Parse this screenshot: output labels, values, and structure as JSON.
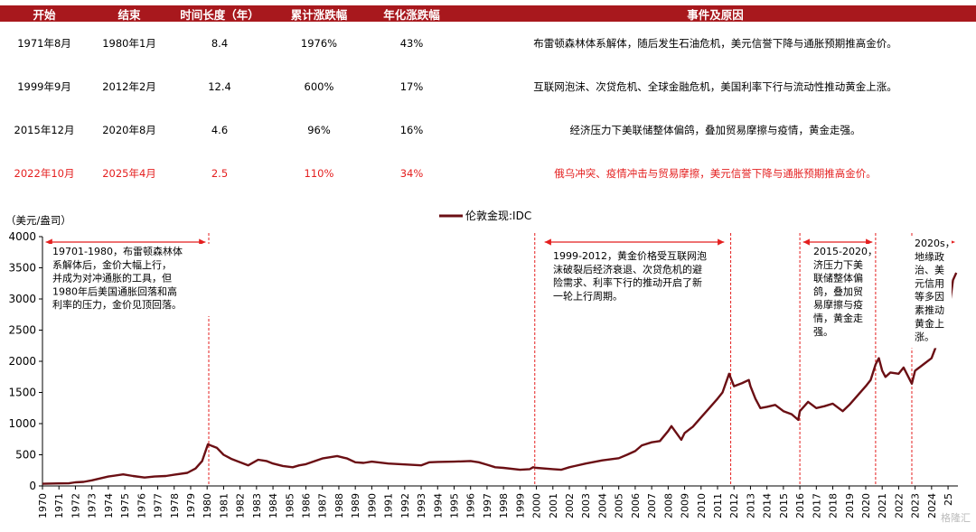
{
  "table": {
    "headers": [
      "开始",
      "结束",
      "时间长度（年）",
      "累计涨跌幅",
      "年化涨跌幅",
      "事件及原因"
    ],
    "rows": [
      {
        "start": "1971年8月",
        "end": "1980年1月",
        "years": "8.4",
        "cum": "1976%",
        "ann": "43%",
        "reason": "布雷顿森林体系解体，随后发生石油危机，美元信誉下降与通胀预期推高金价。",
        "highlight": false
      },
      {
        "start": "1999年9月",
        "end": "2012年2月",
        "years": "12.4",
        "cum": "600%",
        "ann": "17%",
        "reason": "互联网泡沫、次贷危机、全球金融危机，美国利率下行与流动性推动黄金上涨。",
        "highlight": false
      },
      {
        "start": "2015年12月",
        "end": "2020年8月",
        "years": "4.6",
        "cum": "96%",
        "ann": "16%",
        "reason": "经济压力下美联储整体偏鸽，叠加贸易摩擦与疫情，黄金走强。",
        "highlight": false
      },
      {
        "start": "2022年10月",
        "end": "2025年4月",
        "years": "2.5",
        "cum": "110%",
        "ann": "34%",
        "reason": "俄乌冲突、疫情冲击与贸易摩擦，美元信誉下降与通胀预期推高金价。",
        "highlight": true
      }
    ]
  },
  "colors": {
    "line": "#6b0f14",
    "header": "#a8181d",
    "accent": "#e41f1f",
    "highlight_text": "#e41f1f"
  },
  "chart_data": {
    "type": "line",
    "ylabel": "（美元/盎司）",
    "ylim": [
      0,
      4000
    ],
    "xlim": [
      1970,
      2025.6
    ],
    "yticks": [
      0,
      500,
      1000,
      1500,
      2000,
      2500,
      3000,
      3500,
      4000
    ],
    "xticks": [
      "1970",
      "1971",
      "1972",
      "1973",
      "1974",
      "1975",
      "1976",
      "1977",
      "1978",
      "1979",
      "1980",
      "1981",
      "1982",
      "1983",
      "1984",
      "1985",
      "1986",
      "1987",
      "1988",
      "1989",
      "1990",
      "1991",
      "1992",
      "1993",
      "1994",
      "1995",
      "1996",
      "1997",
      "1998",
      "1999",
      "2000",
      "2001",
      "2002",
      "2003",
      "2004",
      "2005",
      "2006",
      "2007",
      "2008",
      "2009",
      "2010",
      "2011",
      "2012",
      "2013",
      "2014",
      "2015",
      "2016",
      "2017",
      "2018",
      "2019",
      "2020",
      "2021",
      "2022",
      "2023",
      "2024",
      "25"
    ],
    "legend": "伦敦金现:IDC",
    "legend_position": "top-center",
    "series": [
      {
        "name": "伦敦金现:IDC",
        "x": [
          1970,
          1971,
          1971.6,
          1972,
          1972.5,
          1973,
          1973.5,
          1974,
          1974.9,
          1975.5,
          1976.2,
          1976.8,
          1977.5,
          1978,
          1978.8,
          1979.3,
          1979.7,
          1980.05,
          1980.3,
          1980.6,
          1981,
          1981.5,
          1982.5,
          1983.1,
          1983.6,
          1984,
          1984.6,
          1985.2,
          1985.6,
          1986,
          1987,
          1987.9,
          1988.5,
          1989,
          1989.5,
          1990,
          1991,
          1992,
          1993,
          1993.5,
          1994,
          1995,
          1996,
          1996.5,
          1997,
          1997.5,
          1998,
          1999,
          1999.6,
          1999.8,
          2000,
          2001,
          2001.5,
          2002,
          2003,
          2004,
          2005,
          2005.5,
          2006,
          2006.4,
          2007,
          2007.5,
          2008,
          2008.2,
          2008.8,
          2009,
          2009.5,
          2010,
          2010.5,
          2011,
          2011.3,
          2011.7,
          2012,
          2012.5,
          2012.9,
          2013,
          2013.3,
          2013.6,
          2014,
          2014.5,
          2015,
          2015.5,
          2015.9,
          2016,
          2016.5,
          2017,
          2017.5,
          2018,
          2018.6,
          2019,
          2019.5,
          2020,
          2020.3,
          2020.6,
          2020.8,
          2021,
          2021.2,
          2021.5,
          2022,
          2022.3,
          2022.8,
          2023,
          2023.5,
          2024,
          2024.5,
          2025,
          2025.3,
          2025.5
        ],
        "y": [
          35,
          40,
          42,
          58,
          65,
          90,
          120,
          150,
          185,
          160,
          135,
          150,
          160,
          180,
          210,
          280,
          400,
          670,
          640,
          610,
          500,
          430,
          330,
          420,
          400,
          360,
          320,
          300,
          330,
          350,
          440,
          480,
          440,
          380,
          370,
          390,
          360,
          345,
          330,
          380,
          385,
          390,
          400,
          380,
          340,
          300,
          290,
          260,
          270,
          300,
          290,
          270,
          260,
          300,
          360,
          410,
          445,
          500,
          560,
          650,
          700,
          720,
          880,
          960,
          740,
          850,
          950,
          1100,
          1250,
          1400,
          1500,
          1800,
          1600,
          1650,
          1700,
          1600,
          1400,
          1250,
          1270,
          1300,
          1200,
          1150,
          1060,
          1200,
          1350,
          1250,
          1280,
          1320,
          1200,
          1300,
          1450,
          1600,
          1700,
          1950,
          2050,
          1850,
          1750,
          1820,
          1800,
          1900,
          1640,
          1850,
          1950,
          2050,
          2400,
          2700,
          3300,
          3420
        ]
      }
    ],
    "annotations": [
      {
        "id": "a1",
        "text_lines": [
          "19701-1980，布雷顿森林体",
          "系解体后，金价大幅上行，",
          "并成为对冲通胀的工具，但",
          "1980年后美国通胀回落和高",
          "利率的压力，金价见顶回落。"
        ]
      },
      {
        "id": "a2",
        "text_lines": [
          "1999-2012，黄金价格受互联网泡",
          "沫破裂后经济衰退、次贷危机的避",
          "险需求、利率下行的推动开启了新",
          "一轮上行周期。"
        ]
      },
      {
        "id": "a3",
        "text_lines": [
          "2015-2020，",
          "济压力下美",
          "联储整体偏",
          "鸽，叠加贸",
          "易摩擦与疫",
          "情，黄金走",
          "强。"
        ]
      },
      {
        "id": "a4",
        "text_lines": [
          "2020s，",
          "地缘政",
          "治、美",
          "元信用",
          "等多因",
          "素推动",
          "黄金上",
          "涨。"
        ]
      }
    ],
    "vlines": [
      1980.1,
      1999.9,
      2011.8,
      2016.0,
      2020.6,
      2022.8
    ]
  },
  "watermark": "格隆汇"
}
